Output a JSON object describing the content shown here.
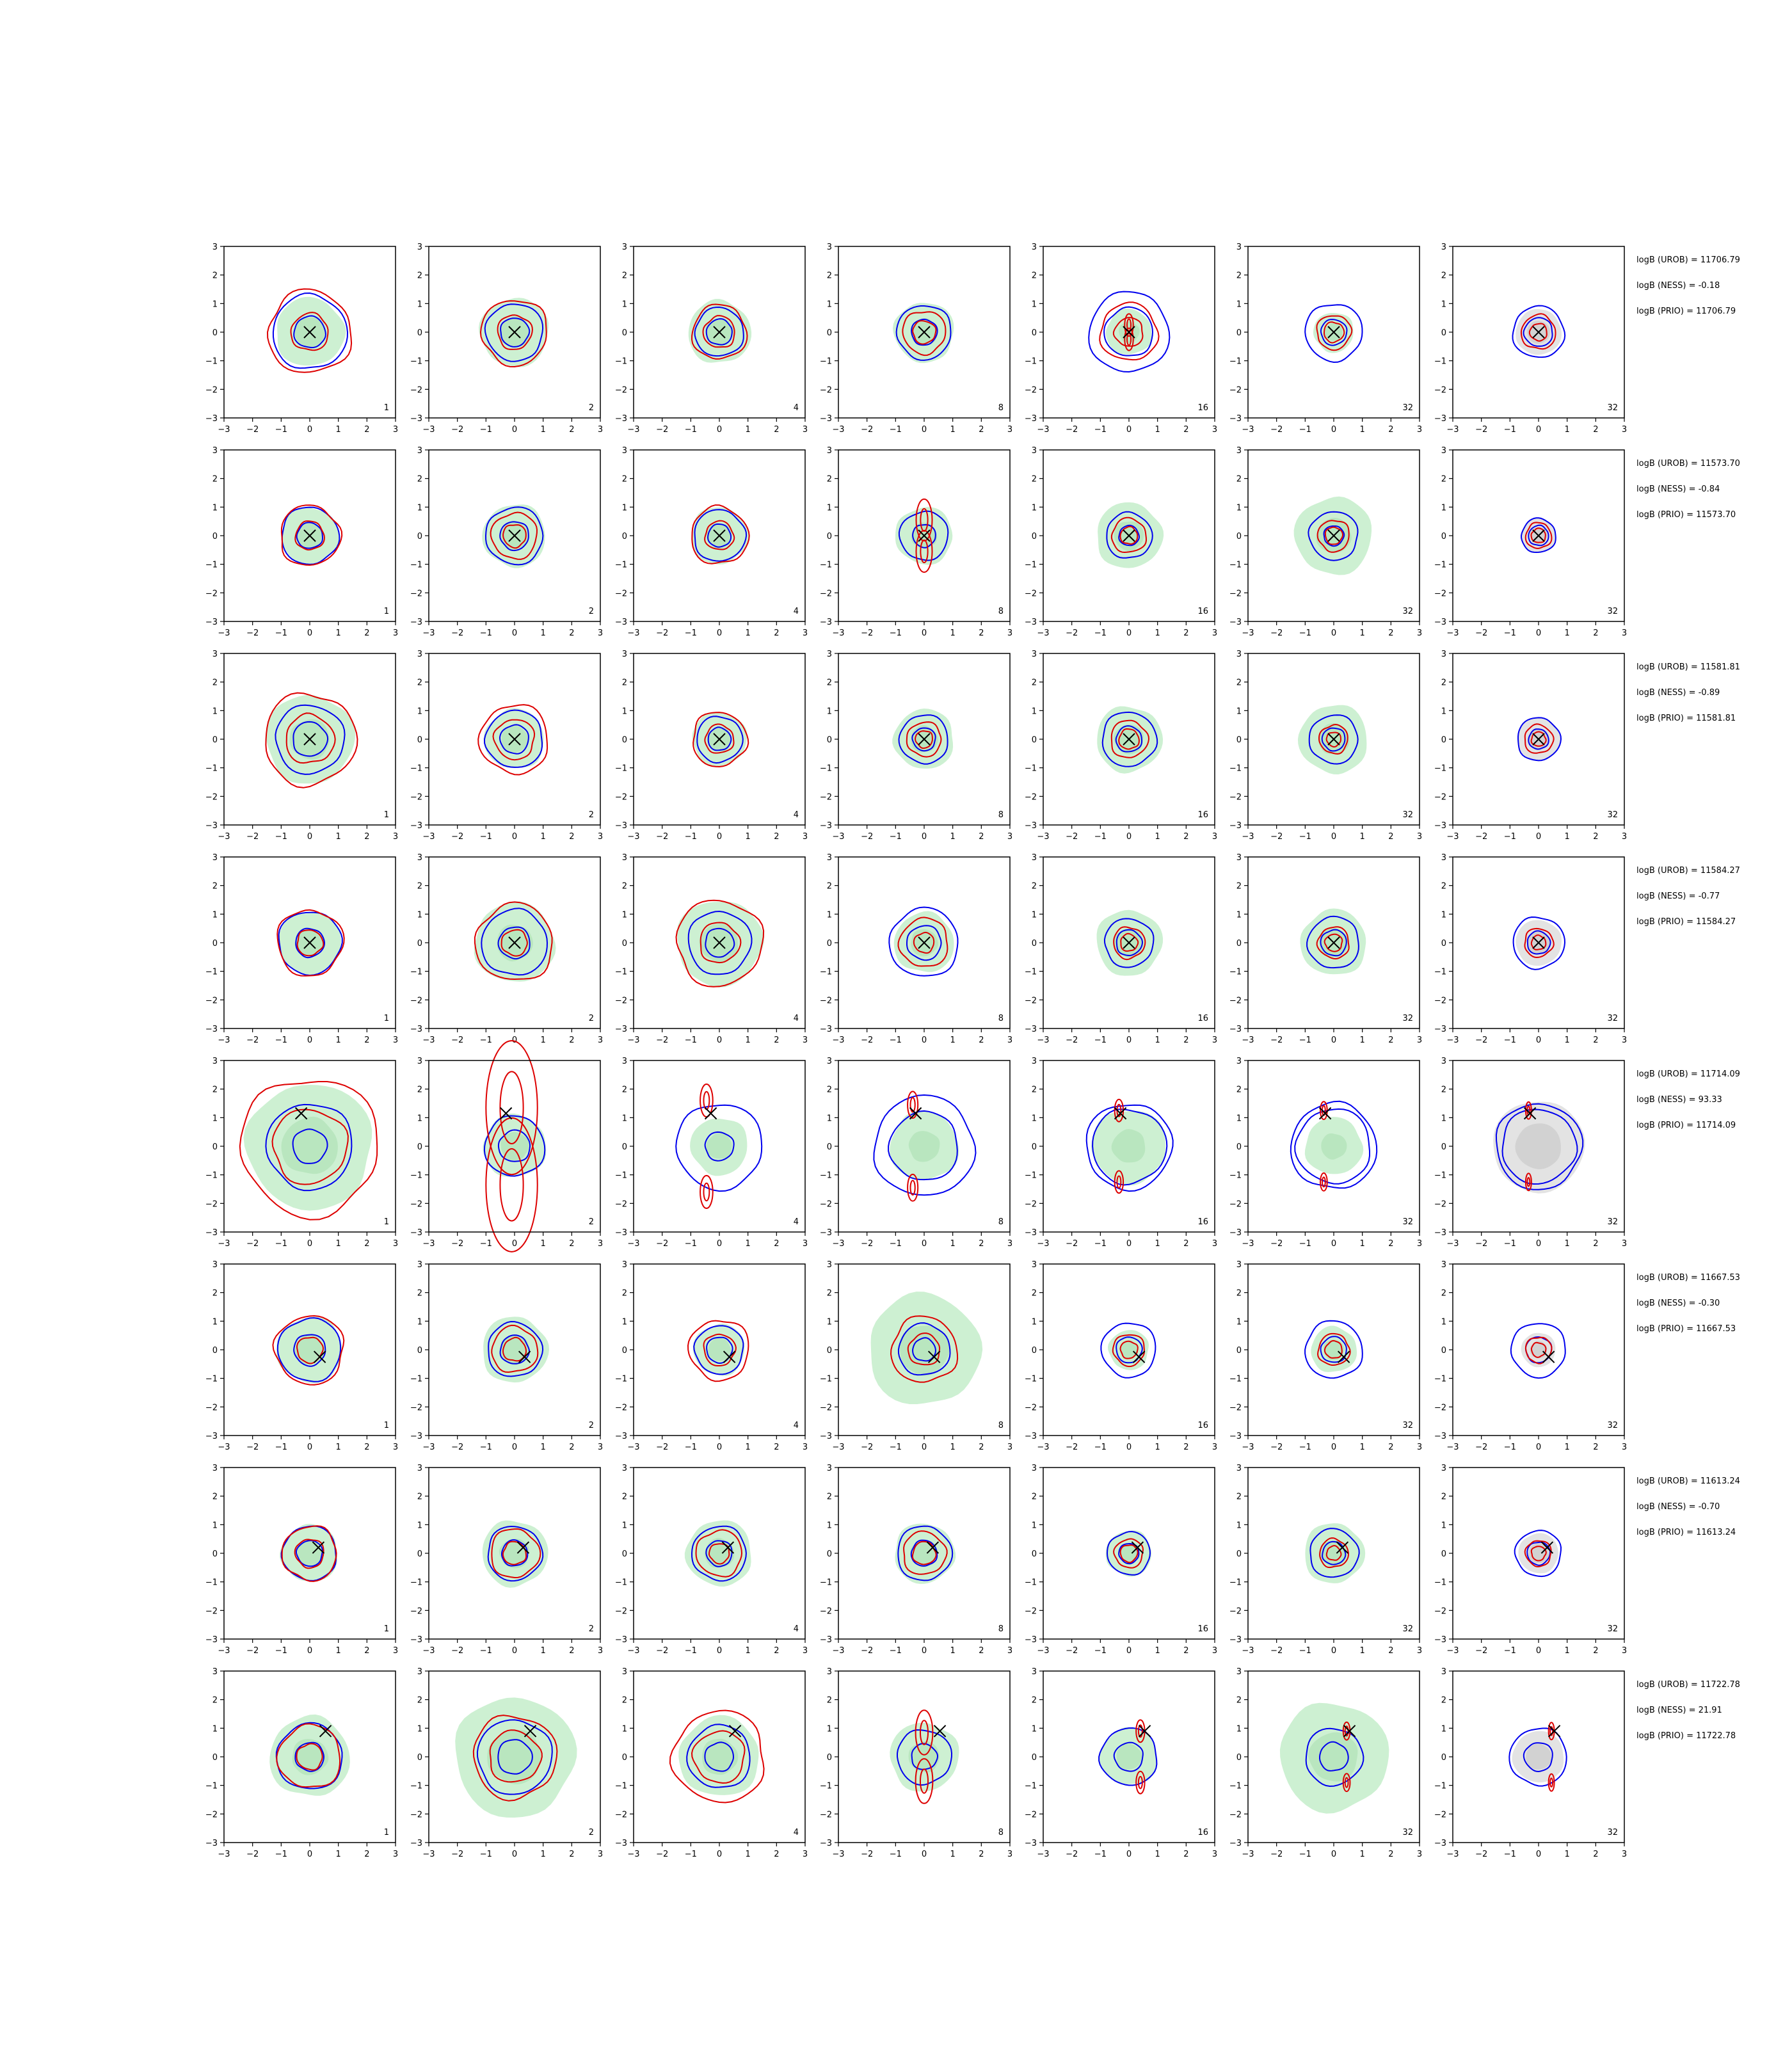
{
  "chart_data": {
    "type": "contour-grid",
    "rows": 8,
    "cols": 7,
    "axis": {
      "xlim": [
        -3,
        3
      ],
      "ylim": [
        -3,
        3
      ],
      "xticks": [
        "−3",
        "−2",
        "−1",
        "0",
        "1",
        "2",
        "3"
      ],
      "yticks": [
        "3",
        "2",
        "1",
        "0",
        "−1",
        "−2",
        "−3"
      ]
    },
    "column_labels": [
      "1",
      "2",
      "4",
      "8",
      "16",
      "32",
      "32"
    ],
    "colors": {
      "fill_green": "#cdf0d2",
      "fill_grey": "#e3e3e3",
      "contour_blue": "#0000ee",
      "contour_red": "#dd0000",
      "marker": "#000000"
    },
    "rows_data": [
      {
        "stats": [
          "logB (UROB) = 11706.79",
          "logB (NESS) = -0.18",
          "logB (PRIO) = 11706.79"
        ],
        "marker": [
          0,
          0
        ],
        "panels": [
          {
            "green": 1.2,
            "blue": [
              0.55,
              1.3
            ],
            "red": [
              0.65,
              1.45
            ]
          },
          {
            "green": 1.2,
            "blue": [
              0.5,
              1.0
            ],
            "red": [
              0.6,
              1.15
            ]
          },
          {
            "green": 1.1,
            "blue": [
              0.45,
              0.85
            ],
            "red": [
              0.55,
              0.95
            ]
          },
          {
            "green": 1.05,
            "blue": [
              0.45,
              0.95
            ],
            "red": [
              0.4,
              0.75
            ]
          },
          {
            "green": 0.8,
            "blue": [
              0.85,
              1.4
            ],
            "red": [
              0.5,
              1.0
            ],
            "redPair": [
              0,
              0.25,
              0.15
            ]
          },
          {
            "green": 0.7,
            "blue": [
              0.45,
              1.0
            ],
            "red": [
              0.35,
              0.6
            ]
          },
          {
            "grey": 0.8,
            "blue": [
              0.5,
              0.9
            ],
            "red": [
              0.3,
              0.6
            ]
          }
        ]
      },
      {
        "stats": [
          "logB (UROB) = 11573.70",
          "logB (NESS) = -0.84",
          "logB (PRIO) = 11573.70"
        ],
        "marker": [
          0,
          0
        ],
        "panels": [
          {
            "green": 1.0,
            "blue": [
              0.45,
              1.0
            ],
            "red": [
              0.5,
              1.05
            ]
          },
          {
            "green": 1.1,
            "blue": [
              0.5,
              1.0
            ],
            "red": [
              0.4,
              0.8
            ]
          },
          {
            "green": 1.0,
            "blue": [
              0.4,
              0.9
            ],
            "red": [
              0.5,
              1.0
            ]
          },
          {
            "green": 1.0,
            "blue": [
              0.4,
              0.85
            ],
            "redPair": [
              0,
              0.55,
              0.28
            ]
          },
          {
            "green": 1.15,
            "blue": [
              0.35,
              0.8
            ],
            "red": [
              0.3,
              0.6
            ]
          },
          {
            "green": 1.35,
            "blue": [
              0.35,
              0.85
            ],
            "red": [
              0.3,
              0.55
            ]
          },
          {
            "grey": 0.6,
            "blue": [
              0.35,
              0.6
            ],
            "red": [
              0.25,
              0.45
            ]
          }
        ]
      },
      {
        "stats": [
          "logB (UROB) = 11581.81",
          "logB (NESS) = -0.89",
          "logB (PRIO) = 11581.81"
        ],
        "marker": [
          0,
          0
        ],
        "panels": [
          {
            "green": 1.55,
            "blue": [
              0.6,
              1.2
            ],
            "red": [
              0.85,
              1.6
            ]
          },
          {
            "green": 1.05,
            "blue": [
              0.5,
              1.0
            ],
            "red": [
              0.7,
              1.2
            ]
          },
          {
            "green": 0.95,
            "blue": [
              0.4,
              0.8
            ],
            "red": [
              0.5,
              0.95
            ]
          },
          {
            "green": 1.05,
            "blue": [
              0.4,
              0.85
            ],
            "red": [
              0.3,
              0.6
            ]
          },
          {
            "green": 1.15,
            "blue": [
              0.45,
              0.95
            ],
            "red": [
              0.35,
              0.65
            ]
          },
          {
            "green": 1.2,
            "blue": [
              0.4,
              0.85
            ],
            "red": [
              0.25,
              0.5
            ]
          },
          {
            "grey": 0.75,
            "blue": [
              0.35,
              0.75
            ],
            "red": [
              0.25,
              0.5
            ]
          }
        ]
      },
      {
        "stats": [
          "logB (UROB) = 11584.27",
          "logB (NESS) = -0.77",
          "logB (PRIO) = 11584.27"
        ],
        "marker": [
          0,
          0
        ],
        "panels": [
          {
            "green": 1.1,
            "blue": [
              0.5,
              1.1
            ],
            "red": [
              0.45,
              1.15
            ]
          },
          {
            "green": 1.4,
            "blue": [
              0.55,
              1.15
            ],
            "red": [
              0.45,
              1.35
            ]
          },
          {
            "green": 1.5,
            "blue": [
              0.5,
              1.1
            ],
            "red": [
              0.7,
              1.5
            ]
          },
          {
            "green": 1.05,
            "blue": [
              0.6,
              1.2
            ],
            "red": [
              0.35,
              0.85
            ]
          },
          {
            "green": 1.15,
            "blue": [
              0.45,
              0.85
            ],
            "red": [
              0.3,
              0.55
            ]
          },
          {
            "green": 1.15,
            "blue": [
              0.45,
              0.9
            ],
            "red": [
              0.3,
              0.55
            ]
          },
          {
            "grey": 0.8,
            "blue": [
              0.4,
              0.9
            ],
            "red": [
              0.25,
              0.5
            ]
          }
        ]
      },
      {
        "stats": [
          "logB (UROB) = 11714.09",
          "logB (NESS) = 93.33",
          "logB (PRIO) = 11714.09"
        ],
        "marker": [
          -0.3,
          1.15
        ],
        "panels": [
          {
            "green": 2.2,
            "blue": [
              0.6,
              1.5
            ],
            "red": [
              1.3,
              2.4
            ]
          },
          {
            "green": 1.1,
            "blue": [
              0.55,
              1.05
            ],
            "redPair": [
              -0.1,
              1.35,
              0.9
            ]
          },
          {
            "green": 1.0,
            "blue": [
              0.5,
              1.5
            ],
            "redPair": [
              -0.45,
              1.6,
              0.22
            ]
          },
          {
            "green": 1.2,
            "blue": [
              1.2,
              1.75
            ],
            "redPair": [
              -0.4,
              1.45,
              0.18
            ]
          },
          {
            "green": 1.3,
            "blue": [
              1.3,
              1.5
            ],
            "redPair": [
              -0.35,
              1.25,
              0.15
            ]
          },
          {
            "green": 1.0,
            "blue": [
              1.3,
              1.5
            ],
            "redPair": [
              -0.35,
              1.25,
              0.12
            ]
          },
          {
            "grey": 1.6,
            "blue": [
              1.3,
              1.5
            ],
            "redPair": [
              -0.35,
              1.25,
              0.1
            ]
          }
        ]
      },
      {
        "stats": [
          "logB (UROB) = 11667.53",
          "logB (NESS) = -0.30",
          "logB (PRIO) = 11667.53"
        ],
        "marker": [
          0.35,
          -0.25
        ],
        "panels": [
          {
            "green": 1.15,
            "blue": [
              0.55,
              1.1
            ],
            "red": [
              0.45,
              1.2
            ]
          },
          {
            "green": 1.15,
            "blue": [
              0.5,
              0.95
            ],
            "red": [
              0.4,
              0.8
            ]
          },
          {
            "green": 0.9,
            "blue": [
              0.45,
              0.85
            ],
            "red": [
              0.55,
              1.05
            ]
          },
          {
            "green": 1.95,
            "blue": [
              0.4,
              0.9
            ],
            "red": [
              0.55,
              1.15
            ]
          },
          {
            "green": 0.7,
            "blue": [
              0.45,
              0.95
            ],
            "red": [
              0.3,
              0.55
            ]
          },
          {
            "green": 0.8,
            "blue": [
              0.45,
              1.0
            ],
            "red": [
              0.3,
              0.55
            ]
          },
          {
            "grey": 0.6,
            "blue": [
              0.45,
              0.95
            ],
            "red": [
              0.25,
              0.45
            ]
          }
        ]
      },
      {
        "stats": [
          "logB (UROB) = 11613.24",
          "logB (NESS) = -0.70",
          "logB (PRIO) = 11613.24"
        ],
        "marker": [
          0.3,
          0.2
        ],
        "panels": [
          {
            "green": 1.0,
            "blue": [
              0.45,
              0.95
            ],
            "red": [
              0.5,
              0.95
            ]
          },
          {
            "green": 1.15,
            "blue": [
              0.45,
              0.95
            ],
            "red": [
              0.4,
              0.85
            ]
          },
          {
            "green": 1.15,
            "blue": [
              0.45,
              0.95
            ],
            "red": [
              0.35,
              0.8
            ]
          },
          {
            "green": 1.05,
            "blue": [
              0.45,
              0.95
            ],
            "red": [
              0.4,
              0.75
            ]
          },
          {
            "green": 0.8,
            "blue": [
              0.35,
              0.75
            ],
            "red": [
              0.3,
              0.5
            ]
          },
          {
            "green": 1.05,
            "blue": [
              0.4,
              0.85
            ],
            "red": [
              0.25,
              0.5
            ]
          },
          {
            "grey": 0.7,
            "blue": [
              0.4,
              0.8
            ],
            "red": [
              0.25,
              0.45
            ]
          }
        ]
      },
      {
        "stats": [
          "logB (UROB) = 11722.78",
          "logB (NESS) = 21.91",
          "logB (PRIO) = 11722.78"
        ],
        "marker": [
          0.55,
          0.9
        ],
        "panels": [
          {
            "green": 1.4,
            "blue": [
              0.5,
              1.15
            ],
            "red": [
              0.45,
              1.1
            ]
          },
          {
            "green": 2.1,
            "blue": [
              0.6,
              1.3
            ],
            "red": [
              0.9,
              1.45
            ]
          },
          {
            "green": 1.4,
            "blue": [
              0.5,
              1.1
            ],
            "red": [
              0.9,
              1.6
            ]
          },
          {
            "green": 1.2,
            "blue": [
              0.45,
              0.95
            ],
            "redPair": [
              0,
              0.85,
              0.3
            ]
          },
          {
            "green": 1.0,
            "blue": [
              0.5,
              1.0
            ],
            "redPair": [
              0.4,
              0.9,
              0.15
            ]
          },
          {
            "green": 1.9,
            "blue": [
              0.5,
              1.0
            ],
            "redPair": [
              0.45,
              0.9,
              0.12
            ]
          },
          {
            "grey": 0.9,
            "blue": [
              0.5,
              1.0
            ],
            "redPair": [
              0.45,
              0.9,
              0.1
            ]
          }
        ]
      }
    ]
  }
}
